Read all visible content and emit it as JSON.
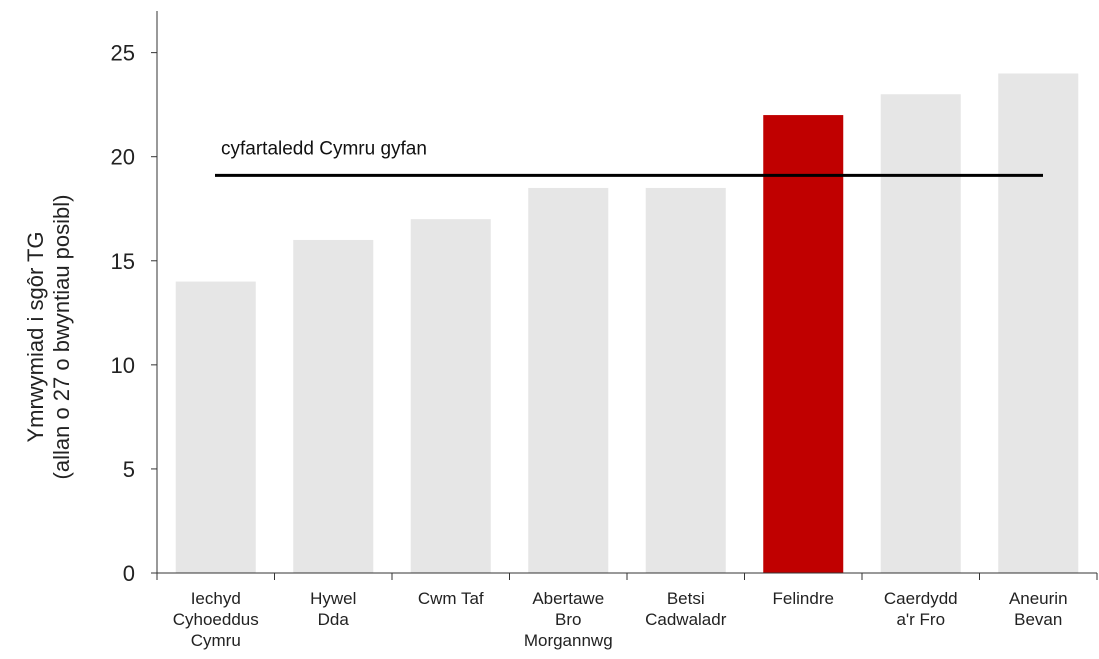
{
  "chart_data": {
    "type": "bar",
    "title": "",
    "ylabel_lines": [
      "Ymrwymiad i sgôr TG",
      "(allan o 27 o bwyntiau posibl)"
    ],
    "xlabel": "",
    "categories": [
      [
        "Iechyd",
        "Cyhoeddus",
        "Cymru"
      ],
      [
        "Hywel",
        "Dda"
      ],
      [
        "Cwm Taf"
      ],
      [
        "Abertawe",
        "Bro",
        "Morgannwg"
      ],
      [
        "Betsi",
        "Cadwaladr"
      ],
      [
        "Felindre"
      ],
      [
        "Caerdydd",
        "a'r Fro"
      ],
      [
        "Aneurin",
        "Bevan"
      ]
    ],
    "values": [
      14,
      16,
      17,
      18.5,
      18.5,
      22,
      23,
      24
    ],
    "highlight_index": 5,
    "ylim": [
      0,
      27
    ],
    "yticks": [
      0,
      5,
      10,
      15,
      20,
      25
    ],
    "grid": false,
    "reference_line": {
      "label": "cyfartaledd Cymru gyfan",
      "value": 19.1
    },
    "colors": {
      "bar": "#e6e6e6",
      "highlight": "#c00000",
      "reference_line": "#000000",
      "axis": "#333333"
    }
  }
}
